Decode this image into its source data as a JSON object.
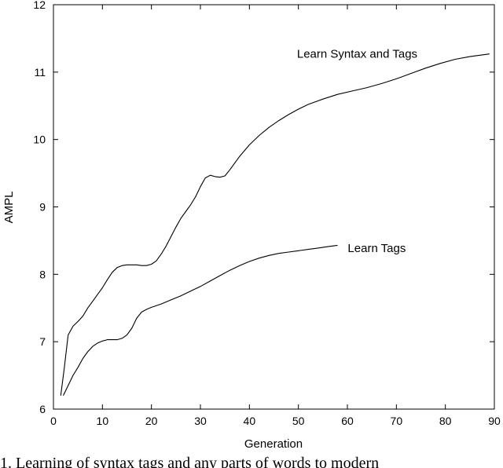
{
  "chart_data": {
    "type": "line",
    "title": "",
    "xlabel": "Generation",
    "ylabel": "AMPL",
    "xlim": [
      0,
      90
    ],
    "ylim": [
      6,
      12
    ],
    "x_ticks": [
      0,
      10,
      20,
      30,
      40,
      50,
      60,
      70,
      80,
      90
    ],
    "y_ticks": [
      6,
      7,
      8,
      9,
      10,
      11,
      12
    ],
    "grid": false,
    "legend": "none",
    "series": [
      {
        "name": "Learn Syntax and Tags",
        "color": "#000000",
        "x": [
          1.5,
          2.2,
          3,
          4,
          5,
          6,
          7,
          8,
          9,
          10,
          11,
          12,
          13,
          14,
          15,
          16,
          17,
          18,
          19,
          20,
          21,
          22,
          23,
          24,
          25,
          26,
          27,
          28,
          29,
          30,
          31,
          32,
          33,
          34,
          35,
          36,
          38,
          40,
          42,
          44,
          46,
          48,
          50,
          52,
          55,
          58,
          61,
          64,
          67,
          70,
          73,
          76,
          79,
          82,
          85,
          89
        ],
        "values": [
          6.2,
          6.6,
          7.1,
          7.23,
          7.3,
          7.38,
          7.5,
          7.6,
          7.7,
          7.8,
          7.92,
          8.03,
          8.1,
          8.13,
          8.14,
          8.14,
          8.14,
          8.13,
          8.13,
          8.15,
          8.2,
          8.3,
          8.42,
          8.56,
          8.7,
          8.83,
          8.93,
          9.03,
          9.15,
          9.3,
          9.43,
          9.47,
          9.45,
          9.44,
          9.46,
          9.55,
          9.75,
          9.92,
          10.06,
          10.18,
          10.28,
          10.37,
          10.45,
          10.52,
          10.6,
          10.67,
          10.72,
          10.77,
          10.83,
          10.9,
          10.98,
          11.06,
          11.13,
          11.19,
          11.23,
          11.27
        ]
      },
      {
        "name": "Learn Tags",
        "color": "#000000",
        "x": [
          2,
          3,
          4,
          5,
          6,
          7,
          8,
          9,
          10,
          11,
          12,
          13,
          14,
          15,
          16,
          17,
          18,
          19,
          20,
          22,
          24,
          26,
          28,
          30,
          32,
          34,
          36,
          38,
          40,
          42,
          44,
          46,
          48,
          50,
          52,
          54,
          56,
          58
        ],
        "values": [
          6.2,
          6.35,
          6.5,
          6.62,
          6.75,
          6.85,
          6.93,
          6.98,
          7.01,
          7.03,
          7.03,
          7.03,
          7.05,
          7.1,
          7.2,
          7.35,
          7.44,
          7.48,
          7.51,
          7.56,
          7.62,
          7.68,
          7.75,
          7.82,
          7.9,
          7.98,
          8.06,
          8.13,
          8.19,
          8.24,
          8.28,
          8.31,
          8.33,
          8.35,
          8.37,
          8.39,
          8.41,
          8.43
        ]
      }
    ],
    "annotations": [
      {
        "text": "Learn Syntax and Tags",
        "x": 62,
        "y": 11.27
      },
      {
        "text": "Learn Tags",
        "x": 66,
        "y": 8.39
      }
    ]
  },
  "caption": "1. Learning of syntax tags and any parts of words to modern"
}
